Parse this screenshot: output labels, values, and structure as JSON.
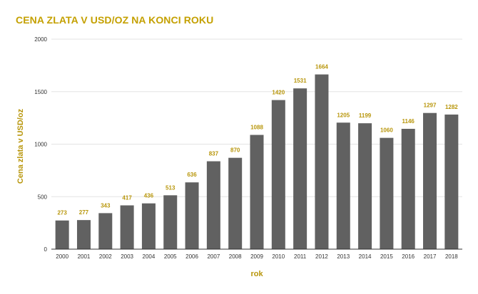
{
  "chart_data": {
    "type": "bar",
    "title": "CENA ZLATA V USD/OZ NA KONCI ROKU",
    "xlabel": "rok",
    "ylabel": "Cena zlata v USD/oz",
    "categories": [
      "2000",
      "2001",
      "2002",
      "2003",
      "2004",
      "2005",
      "2006",
      "2007",
      "2008",
      "2009",
      "2010",
      "2011",
      "2012",
      "2013",
      "2014",
      "2015",
      "2016",
      "2017",
      "2018"
    ],
    "values": [
      273,
      277,
      343,
      417,
      436,
      513,
      636,
      837,
      870,
      1088,
      1420,
      1531,
      1664,
      1205,
      1199,
      1060,
      1146,
      1297,
      1282
    ],
    "ylim": [
      0,
      2000
    ],
    "yticks": [
      0,
      500,
      1000,
      1500,
      2000
    ],
    "grid": true,
    "legend": "none",
    "bar_color": "#616161",
    "label_color": "#b8960b",
    "title_color": "#c4a000"
  }
}
